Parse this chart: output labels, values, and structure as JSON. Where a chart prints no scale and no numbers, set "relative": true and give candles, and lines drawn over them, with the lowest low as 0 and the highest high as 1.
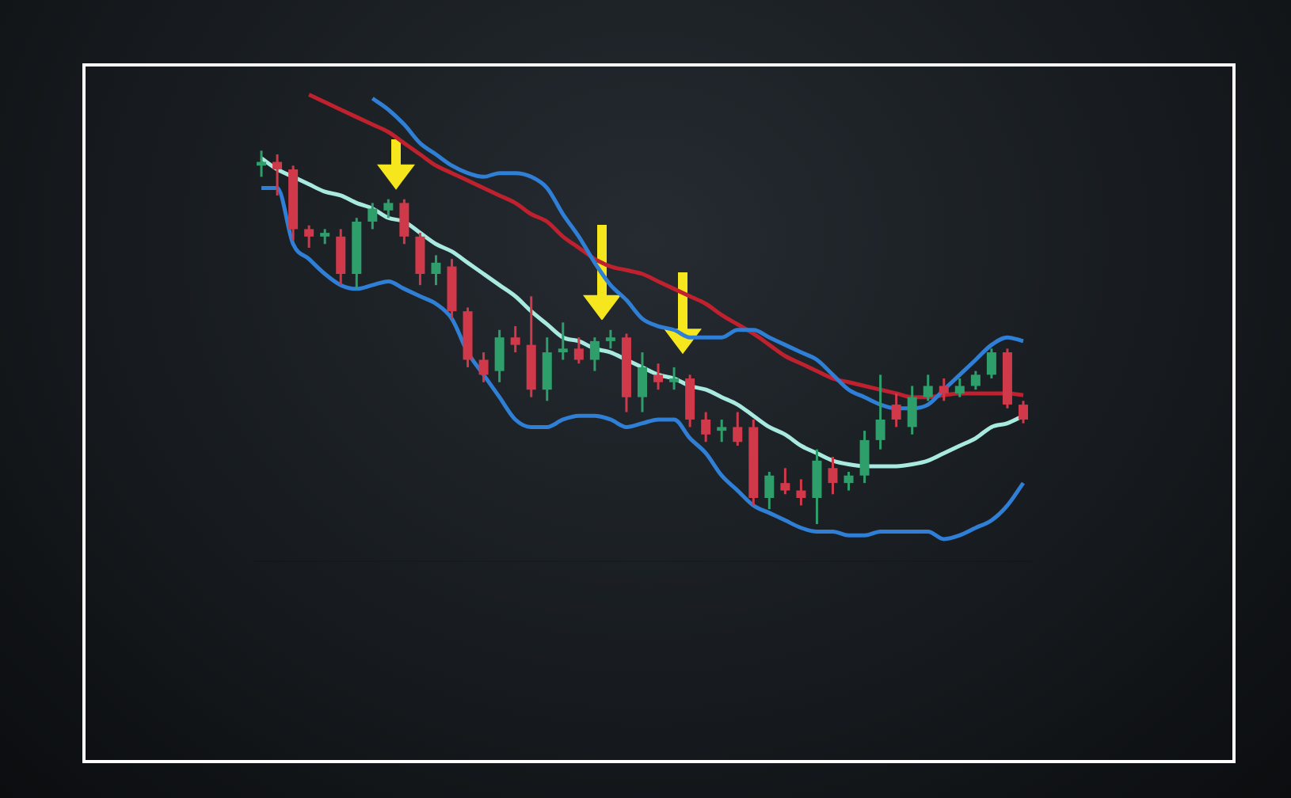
{
  "chart_data": {
    "type": "candlestick",
    "relative": true,
    "legend": false,
    "categories": [
      null,
      null,
      null,
      null,
      null,
      null,
      null,
      null,
      null,
      null,
      null,
      null,
      null,
      null,
      null,
      null,
      null,
      null,
      null,
      null,
      null,
      null,
      null,
      null,
      null,
      null,
      null,
      null,
      null,
      null,
      null,
      null,
      null,
      null,
      null,
      null,
      null,
      null,
      null,
      null,
      null,
      null,
      null,
      null,
      null,
      null,
      null,
      null,
      null
    ],
    "ohlc": [
      [
        0.96,
        1.0,
        0.93,
        0.97
      ],
      [
        0.97,
        0.99,
        0.88,
        0.95
      ],
      [
        0.95,
        0.96,
        0.76,
        0.79
      ],
      [
        0.79,
        0.8,
        0.74,
        0.77
      ],
      [
        0.77,
        0.79,
        0.75,
        0.78
      ],
      [
        0.77,
        0.79,
        0.64,
        0.67
      ],
      [
        0.67,
        0.82,
        0.63,
        0.81
      ],
      [
        0.81,
        0.86,
        0.79,
        0.845
      ],
      [
        0.84,
        0.87,
        0.82,
        0.86
      ],
      [
        0.86,
        0.87,
        0.75,
        0.77
      ],
      [
        0.77,
        0.78,
        0.64,
        0.67
      ],
      [
        0.67,
        0.72,
        0.64,
        0.7
      ],
      [
        0.69,
        0.71,
        0.55,
        0.57
      ],
      [
        0.57,
        0.58,
        0.42,
        0.44
      ],
      [
        0.44,
        0.46,
        0.38,
        0.4
      ],
      [
        0.41,
        0.52,
        0.38,
        0.5
      ],
      [
        0.5,
        0.53,
        0.46,
        0.48
      ],
      [
        0.48,
        0.61,
        0.34,
        0.36
      ],
      [
        0.36,
        0.5,
        0.33,
        0.46
      ],
      [
        0.46,
        0.54,
        0.44,
        0.47
      ],
      [
        0.47,
        0.5,
        0.43,
        0.44
      ],
      [
        0.44,
        0.5,
        0.41,
        0.49
      ],
      [
        0.49,
        0.52,
        0.47,
        0.5
      ],
      [
        0.5,
        0.51,
        0.3,
        0.34
      ],
      [
        0.34,
        0.46,
        0.3,
        0.42
      ],
      [
        0.4,
        0.43,
        0.36,
        0.38
      ],
      [
        0.38,
        0.42,
        0.36,
        0.39
      ],
      [
        0.39,
        0.4,
        0.26,
        0.28
      ],
      [
        0.28,
        0.3,
        0.22,
        0.24
      ],
      [
        0.25,
        0.28,
        0.22,
        0.26
      ],
      [
        0.26,
        0.3,
        0.21,
        0.22
      ],
      [
        0.26,
        0.28,
        0.05,
        0.07
      ],
      [
        0.07,
        0.14,
        0.04,
        0.13
      ],
      [
        0.11,
        0.15,
        0.08,
        0.09
      ],
      [
        0.09,
        0.12,
        0.05,
        0.07
      ],
      [
        0.07,
        0.2,
        0.0,
        0.17
      ],
      [
        0.15,
        0.18,
        0.08,
        0.11
      ],
      [
        0.11,
        0.14,
        0.09,
        0.13
      ],
      [
        0.13,
        0.25,
        0.11,
        0.225
      ],
      [
        0.225,
        0.4,
        0.2,
        0.28
      ],
      [
        0.32,
        0.35,
        0.26,
        0.28
      ],
      [
        0.26,
        0.37,
        0.24,
        0.34
      ],
      [
        0.34,
        0.4,
        0.33,
        0.37
      ],
      [
        0.37,
        0.39,
        0.33,
        0.35
      ],
      [
        0.35,
        0.39,
        0.34,
        0.37
      ],
      [
        0.37,
        0.41,
        0.36,
        0.4
      ],
      [
        0.4,
        0.47,
        0.39,
        0.46
      ],
      [
        0.46,
        0.47,
        0.31,
        0.32
      ],
      [
        0.32,
        0.33,
        0.27,
        0.28
      ]
    ],
    "series": [
      {
        "type": "line",
        "color": "#2f7fd6",
        "values": [
          null,
          null,
          null,
          null,
          null,
          null,
          null,
          1.14,
          1.11,
          1.07,
          1.02,
          0.99,
          0.96,
          0.94,
          0.93,
          0.94,
          0.94,
          0.93,
          0.9,
          0.83,
          0.77,
          0.7,
          0.64,
          0.6,
          0.55,
          0.53,
          0.52,
          0.5,
          0.5,
          0.5,
          0.52,
          0.52,
          0.5,
          0.48,
          0.46,
          0.44,
          0.4,
          0.36,
          0.34,
          0.32,
          0.31,
          0.31,
          0.32,
          0.36,
          0.4,
          0.44,
          0.48,
          0.5,
          0.49
        ]
      },
      {
        "type": "line",
        "color": "#c0212e",
        "values": [
          null,
          null,
          null,
          1.15,
          1.13,
          1.11,
          1.09,
          1.07,
          1.05,
          1.02,
          0.99,
          0.96,
          0.94,
          0.92,
          0.9,
          0.88,
          0.86,
          0.83,
          0.81,
          0.77,
          0.74,
          0.71,
          0.69,
          0.68,
          0.67,
          0.65,
          0.63,
          0.61,
          0.59,
          0.56,
          0.535,
          0.51,
          0.48,
          0.45,
          0.43,
          0.41,
          0.39,
          0.38,
          0.37,
          0.36,
          0.35,
          0.34,
          0.34,
          0.345,
          0.35,
          0.35,
          0.35,
          0.35,
          0.345
        ]
      },
      {
        "type": "line",
        "color": "#a8eadf",
        "values": [
          0.98,
          0.95,
          0.93,
          0.91,
          0.89,
          0.88,
          0.86,
          0.845,
          0.82,
          0.81,
          0.78,
          0.75,
          0.73,
          0.7,
          0.67,
          0.64,
          0.61,
          0.57,
          0.535,
          0.5,
          0.49,
          0.47,
          0.46,
          0.44,
          0.42,
          0.4,
          0.39,
          0.37,
          0.36,
          0.34,
          0.32,
          0.29,
          0.26,
          0.24,
          0.21,
          0.19,
          0.17,
          0.16,
          0.155,
          0.155,
          0.155,
          0.16,
          0.17,
          0.19,
          0.21,
          0.23,
          0.26,
          0.27,
          0.29
        ]
      },
      {
        "type": "line",
        "color": "#2f7fd6",
        "values": [
          0.9,
          0.9,
          0.75,
          0.71,
          0.67,
          0.64,
          0.63,
          0.64,
          0.65,
          0.63,
          0.61,
          0.59,
          0.55,
          0.46,
          0.4,
          0.34,
          0.28,
          0.26,
          0.26,
          0.28,
          0.29,
          0.29,
          0.28,
          0.26,
          0.27,
          0.28,
          0.28,
          0.23,
          0.19,
          0.13,
          0.09,
          0.05,
          0.03,
          0.01,
          -0.01,
          -0.02,
          -0.02,
          -0.03,
          -0.03,
          -0.02,
          -0.02,
          -0.02,
          -0.02,
          -0.04,
          -0.03,
          -0.01,
          0.01,
          0.05,
          0.11
        ]
      }
    ]
  }
}
